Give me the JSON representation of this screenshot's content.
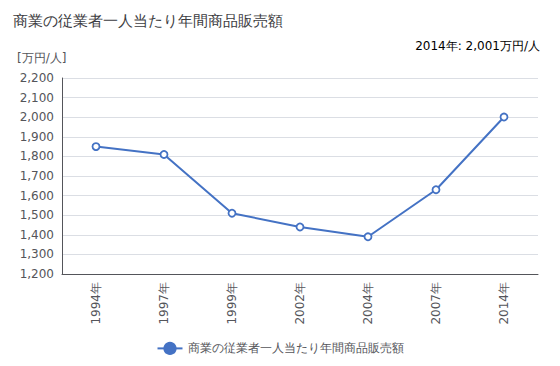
{
  "chart_data": {
    "type": "line",
    "title": "商業の従業者一人当たり年間商品販売額",
    "ylabel": "[万円/人]",
    "annotation": "2014年: 2,001万円/人",
    "categories": [
      "1994年",
      "1997年",
      "1999年",
      "2002年",
      "2004年",
      "2007年",
      "2014年"
    ],
    "series": [
      {
        "name": "商業の従業者一人当たり年間商品販売額",
        "color": "#4472c4",
        "marker": "circle",
        "values": [
          1850,
          1810,
          1510,
          1440,
          1390,
          1630,
          2001
        ]
      }
    ],
    "ylim": [
      1200,
      2200
    ],
    "yticks": [
      {
        "value": 1200,
        "label": "1,200"
      },
      {
        "value": 1300,
        "label": "1,300"
      },
      {
        "value": 1400,
        "label": "1,400"
      },
      {
        "value": 1500,
        "label": "1,500"
      },
      {
        "value": 1600,
        "label": "1,600"
      },
      {
        "value": 1700,
        "label": "1,700"
      },
      {
        "value": 1800,
        "label": "1,800"
      },
      {
        "value": 1900,
        "label": "1,900"
      },
      {
        "value": 2000,
        "label": "2,000"
      },
      {
        "value": 2100,
        "label": "2,100"
      },
      {
        "value": 2200,
        "label": "2,200"
      }
    ],
    "grid": true,
    "legend": "bottom"
  }
}
